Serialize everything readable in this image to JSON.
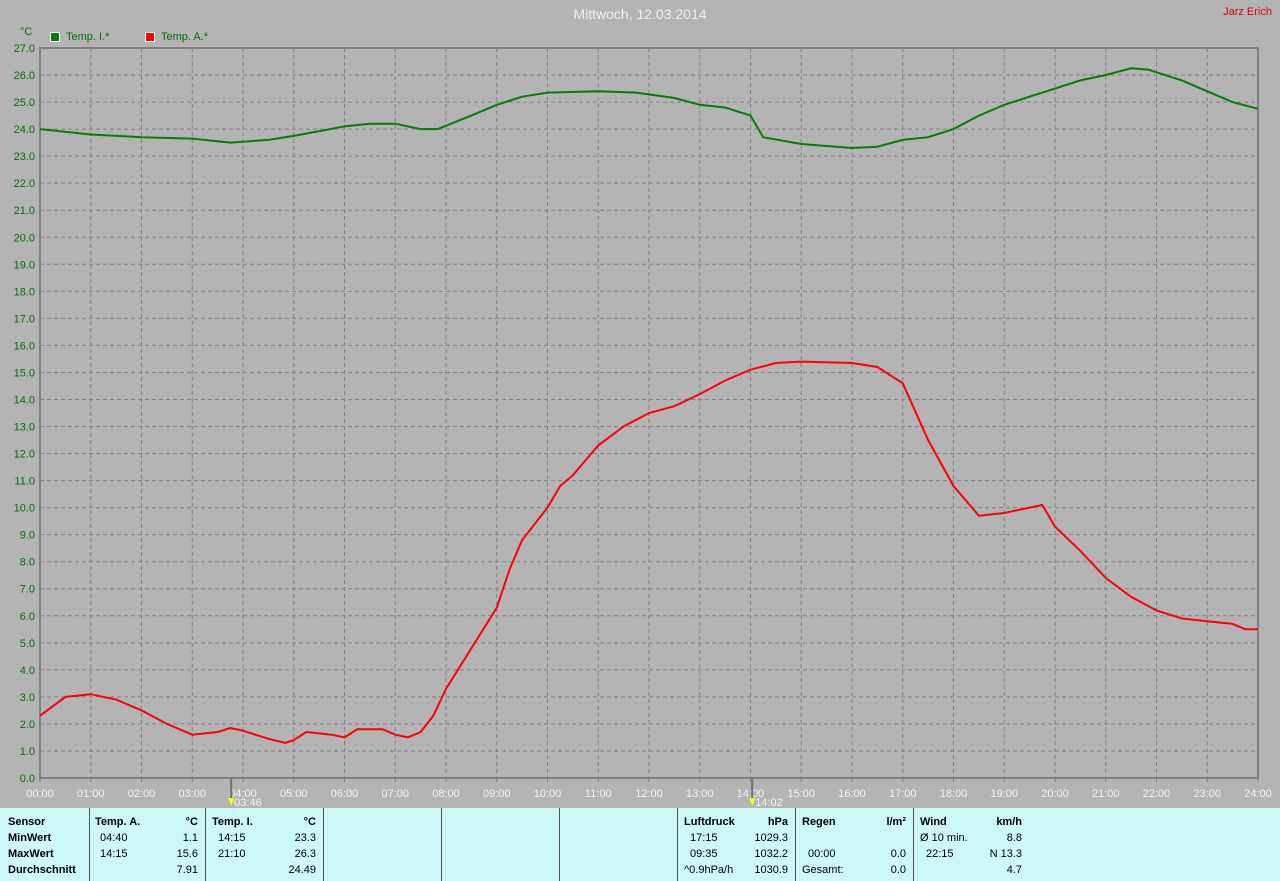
{
  "header": {
    "title": "Mittwoch, 12.03.2014",
    "author": "Jarz Erich"
  },
  "chart_data": {
    "type": "line",
    "title": "Mittwoch, 12.03.2014",
    "ylabel": "°C",
    "ylim": [
      0,
      27
    ],
    "xlim": [
      "00:00",
      "24:00"
    ],
    "grid": true,
    "legend_position": "top-left",
    "yticks": [
      "0.0",
      "1.0",
      "2.0",
      "3.0",
      "4.0",
      "5.0",
      "6.0",
      "7.0",
      "8.0",
      "9.0",
      "10.0",
      "11.0",
      "12.0",
      "13.0",
      "14.0",
      "15.0",
      "16.0",
      "17.0",
      "18.0",
      "19.0",
      "20.0",
      "21.0",
      "22.0",
      "23.0",
      "24.0",
      "25.0",
      "26.0",
      "27.0"
    ],
    "xticks": [
      "00:00",
      "01:00",
      "02:00",
      "03:00",
      "04:00",
      "05:00",
      "06:00",
      "07:00",
      "08:00",
      "09:00",
      "10:00",
      "11:00",
      "12:00",
      "13:00",
      "14:00",
      "15:00",
      "16:00",
      "17:00",
      "18:00",
      "19:00",
      "20:00",
      "21:00",
      "22:00",
      "23:00",
      "24:00"
    ],
    "markers": [
      {
        "time": "03:46",
        "label": "03:46",
        "color": "#ffff00"
      },
      {
        "time": "14:02",
        "label": "14:02",
        "color": "#ffff00"
      }
    ],
    "series": [
      {
        "name": "Temp. I.*",
        "color": "#008000",
        "x": [
          "00:00",
          "01:00",
          "02:00",
          "03:00",
          "03:45",
          "04:30",
          "05:00",
          "06:00",
          "06:30",
          "07:00",
          "07:30",
          "07:50",
          "08:30",
          "09:00",
          "09:30",
          "10:00",
          "11:00",
          "11:45",
          "12:30",
          "13:00",
          "13:30",
          "14:00",
          "14:15",
          "15:00",
          "16:00",
          "16:30",
          "17:00",
          "17:30",
          "18:00",
          "18:30",
          "19:00",
          "19:30",
          "20:00",
          "20:30",
          "21:00",
          "21:30",
          "21:50",
          "22:30",
          "23:00",
          "23:30",
          "24:00"
        ],
        "y": [
          24.0,
          23.8,
          23.7,
          23.65,
          23.5,
          23.6,
          23.75,
          24.1,
          24.2,
          24.2,
          24.0,
          24.0,
          24.5,
          24.9,
          25.2,
          25.35,
          25.4,
          25.35,
          25.15,
          24.9,
          24.8,
          24.5,
          23.7,
          23.45,
          23.3,
          23.35,
          23.6,
          23.7,
          24.0,
          24.5,
          24.9,
          25.2,
          25.5,
          25.8,
          26.0,
          26.25,
          26.2,
          25.8,
          25.4,
          25.0,
          24.75
        ]
      },
      {
        "name": "Temp. A.*",
        "color": "#ff0000",
        "x": [
          "00:00",
          "00:30",
          "01:00",
          "01:30",
          "02:00",
          "02:30",
          "03:00",
          "03:30",
          "03:45",
          "04:00",
          "04:30",
          "04:50",
          "05:00",
          "05:15",
          "05:45",
          "06:00",
          "06:15",
          "06:45",
          "07:00",
          "07:15",
          "07:30",
          "07:45",
          "08:00",
          "08:30",
          "09:00",
          "09:15",
          "09:30",
          "10:00",
          "10:15",
          "10:30",
          "11:00",
          "11:30",
          "12:00",
          "12:30",
          "13:00",
          "13:30",
          "14:00",
          "14:30",
          "15:00",
          "16:00",
          "16:30",
          "17:00",
          "17:30",
          "18:00",
          "18:30",
          "19:00",
          "19:30",
          "19:45",
          "20:00",
          "20:30",
          "21:00",
          "21:30",
          "22:00",
          "22:30",
          "23:00",
          "23:30",
          "23:45",
          "24:00"
        ],
        "y": [
          2.3,
          3.0,
          3.1,
          2.9,
          2.5,
          2.0,
          1.6,
          1.7,
          1.85,
          1.75,
          1.45,
          1.3,
          1.4,
          1.7,
          1.6,
          1.5,
          1.8,
          1.8,
          1.6,
          1.5,
          1.7,
          2.3,
          3.3,
          4.8,
          6.3,
          7.7,
          8.8,
          10.0,
          10.8,
          11.2,
          12.3,
          13.0,
          13.5,
          13.75,
          14.2,
          14.7,
          15.1,
          15.35,
          15.4,
          15.35,
          15.2,
          14.6,
          12.5,
          10.8,
          9.7,
          9.8,
          10.0,
          10.1,
          9.3,
          8.4,
          7.4,
          6.7,
          6.2,
          5.9,
          5.8,
          5.7,
          5.5,
          5.5
        ]
      }
    ]
  },
  "table": {
    "row_labels": [
      "Sensor",
      "MinWert",
      "MaxWert",
      "Durchschnitt"
    ],
    "temp_a": {
      "header": "Temp. A.",
      "unit": "°C",
      "min_time": "04:40",
      "min": "1.1",
      "max_time": "14:15",
      "max": "15.6",
      "avg": "7.91"
    },
    "temp_i": {
      "header": "Temp. I.",
      "unit": "°C",
      "min_time": "14:15",
      "min": "23.3",
      "max_time": "21:10",
      "max": "26.3",
      "avg": "24.49"
    },
    "pressure": {
      "header": "Luftdruck",
      "unit": "hPa",
      "r1_label": "17:15",
      "r1": "1029.3",
      "r2_label": "09:35",
      "r2": "1032.2",
      "r3_label": "^0.9hPa/h",
      "r3": "1030.9"
    },
    "rain": {
      "header": "Regen",
      "unit": "l/m²",
      "r2_label": "00:00",
      "r2": "0.0",
      "r3_label": "Gesamt:",
      "r3": "0.0"
    },
    "wind": {
      "header": "Wind",
      "unit": "km/h",
      "r1_label": "Ø 10 min.",
      "r1": "8.8",
      "r2_label": "22:15",
      "r2": "N 13.3",
      "r3": "4.7"
    }
  }
}
